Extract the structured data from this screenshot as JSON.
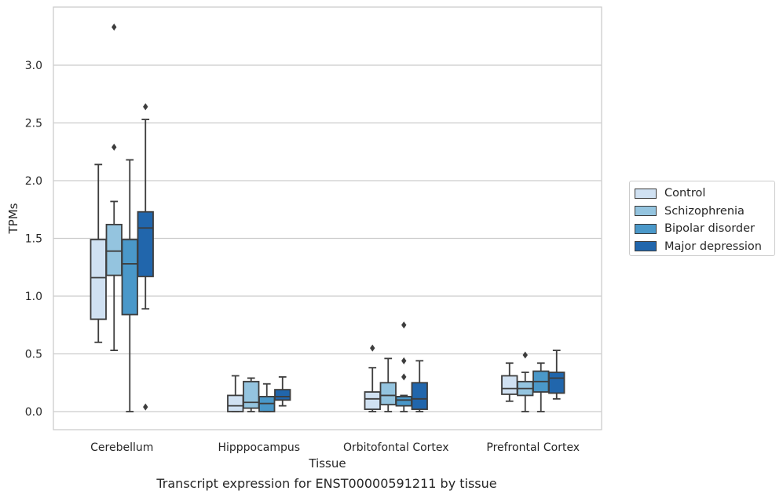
{
  "chart_data": {
    "type": "box",
    "xlabel": "Tissue",
    "ylabel": "TPMs",
    "caption": "Transcript expression for ENST00000591211 by tissue",
    "ylim": [
      -0.17,
      3.5
    ],
    "yticks": [
      "0.0",
      "0.5",
      "1.0",
      "1.5",
      "2.0",
      "2.5",
      "3.0"
    ],
    "grid": true,
    "legend_position": "right",
    "categories": [
      "Cerebellum",
      "Hipppocampus",
      "Orbitofontal Cortex",
      "Prefrontal Cortex"
    ],
    "series": [
      {
        "name": "Control",
        "color": "#d0e1f2",
        "boxes": [
          {
            "whislo": 0.6,
            "q1": 0.8,
            "med": 1.16,
            "q3": 1.49,
            "whishi": 2.14,
            "fliers": []
          },
          {
            "whislo": 0.0,
            "q1": 0.0,
            "med": 0.05,
            "q3": 0.14,
            "whishi": 0.31,
            "fliers": []
          },
          {
            "whislo": 0.0,
            "q1": 0.02,
            "med": 0.11,
            "q3": 0.17,
            "whishi": 0.38,
            "fliers": [
              0.55
            ]
          },
          {
            "whislo": 0.09,
            "q1": 0.15,
            "med": 0.2,
            "q3": 0.31,
            "whishi": 0.42,
            "fliers": []
          }
        ]
      },
      {
        "name": "Schizophrenia",
        "color": "#94c4df",
        "boxes": [
          {
            "whislo": 0.53,
            "q1": 1.18,
            "med": 1.39,
            "q3": 1.62,
            "whishi": 1.82,
            "fliers": [
              2.29,
              3.33
            ]
          },
          {
            "whislo": 0.0,
            "q1": 0.03,
            "med": 0.08,
            "q3": 0.26,
            "whishi": 0.29,
            "fliers": []
          },
          {
            "whislo": 0.0,
            "q1": 0.06,
            "med": 0.14,
            "q3": 0.25,
            "whishi": 0.46,
            "fliers": []
          },
          {
            "whislo": 0.0,
            "q1": 0.14,
            "med": 0.2,
            "q3": 0.26,
            "whishi": 0.34,
            "fliers": [
              0.49
            ]
          }
        ]
      },
      {
        "name": "Bipolar disorder",
        "color": "#4a98c9",
        "boxes": [
          {
            "whislo": 0.0,
            "q1": 0.84,
            "med": 1.28,
            "q3": 1.49,
            "whishi": 2.18,
            "fliers": []
          },
          {
            "whislo": 0.0,
            "q1": 0.0,
            "med": 0.07,
            "q3": 0.13,
            "whishi": 0.24,
            "fliers": []
          },
          {
            "whislo": 0.0,
            "q1": 0.05,
            "med": 0.1,
            "q3": 0.13,
            "whishi": 0.14,
            "fliers": [
              0.3,
              0.44,
              0.75
            ]
          },
          {
            "whislo": 0.0,
            "q1": 0.17,
            "med": 0.26,
            "q3": 0.35,
            "whishi": 0.42,
            "fliers": []
          }
        ]
      },
      {
        "name": "Major depression",
        "color": "#2166ac",
        "boxes": [
          {
            "whislo": 0.89,
            "q1": 1.17,
            "med": 1.59,
            "q3": 1.73,
            "whishi": 2.53,
            "fliers": [
              0.04,
              2.64
            ]
          },
          {
            "whislo": 0.05,
            "q1": 0.1,
            "med": 0.13,
            "q3": 0.19,
            "whishi": 0.3,
            "fliers": []
          },
          {
            "whislo": 0.0,
            "q1": 0.02,
            "med": 0.11,
            "q3": 0.25,
            "whishi": 0.44,
            "fliers": []
          },
          {
            "whislo": 0.11,
            "q1": 0.16,
            "med": 0.29,
            "q3": 0.34,
            "whishi": 0.53,
            "fliers": []
          }
        ]
      }
    ]
  }
}
